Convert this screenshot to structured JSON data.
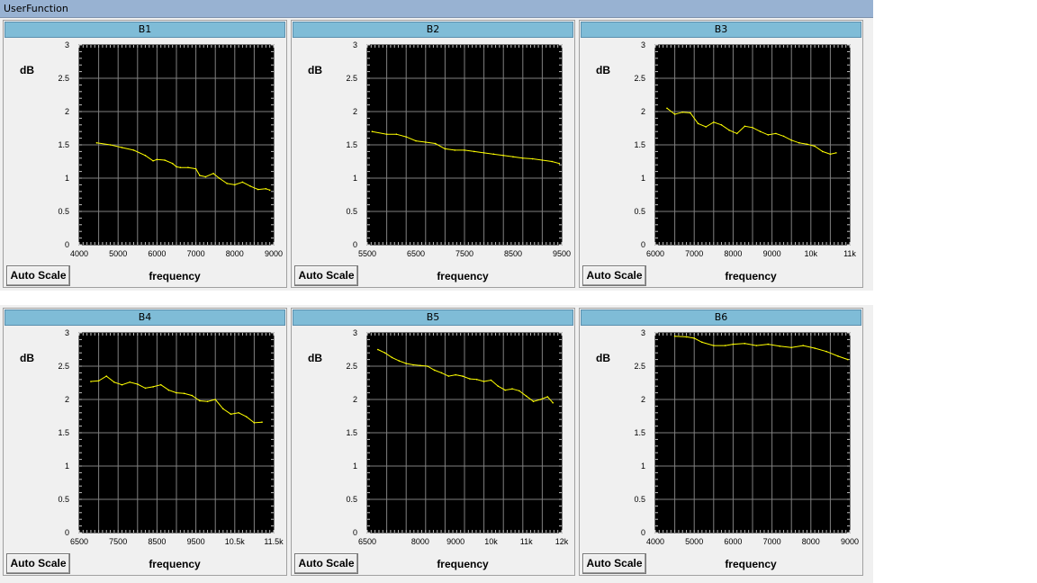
{
  "window": {
    "title": "UserFunction"
  },
  "button_label": "Auto Scale",
  "colors": {
    "plot_bg": "#000000",
    "grid": "#808080",
    "trace": "#ffff00",
    "panel_title_bg": "#7fbcd7",
    "titlebar_bg": "#98b2d2"
  },
  "chart_data": [
    {
      "title": "B1",
      "type": "line",
      "ylabel": "dB",
      "xlabel": "frequency",
      "ylim": [
        0,
        3
      ],
      "xlim": [
        4000,
        9000
      ],
      "yticks": [
        "0",
        "0.5",
        "1",
        "1.5",
        "2",
        "2.5",
        "3"
      ],
      "xticks": [
        {
          "v": 4000,
          "label": "4000"
        },
        {
          "v": 5000,
          "label": "5000"
        },
        {
          "v": 6000,
          "label": "6000"
        },
        {
          "v": 7000,
          "label": "7000"
        },
        {
          "v": 8000,
          "label": "8000"
        },
        {
          "v": 9000,
          "label": "9000"
        }
      ],
      "x": [
        4450,
        4800,
        5100,
        5400,
        5700,
        5900,
        6000,
        6200,
        6400,
        6500,
        6600,
        6800,
        7000,
        7100,
        7250,
        7450,
        7600,
        7800,
        8000,
        8200,
        8400,
        8600,
        8800,
        8900
      ],
      "y": [
        1.53,
        1.5,
        1.46,
        1.42,
        1.34,
        1.26,
        1.28,
        1.27,
        1.22,
        1.17,
        1.16,
        1.16,
        1.14,
        1.04,
        1.02,
        1.07,
        1.0,
        0.92,
        0.9,
        0.94,
        0.88,
        0.83,
        0.84,
        0.82
      ]
    },
    {
      "title": "B2",
      "type": "line",
      "ylabel": "dB",
      "xlabel": "frequency",
      "ylim": [
        0,
        3
      ],
      "xlim": [
        5500,
        9500
      ],
      "yticks": [
        "0",
        "0.5",
        "1",
        "1.5",
        "2",
        "2.5",
        "3"
      ],
      "xticks": [
        {
          "v": 5500,
          "label": "5500"
        },
        {
          "v": 6500,
          "label": "6500"
        },
        {
          "v": 7500,
          "label": "7500"
        },
        {
          "v": 8500,
          "label": "8500"
        },
        {
          "v": 9500,
          "label": "9500"
        }
      ],
      "x": [
        5600,
        5900,
        6100,
        6300,
        6500,
        6700,
        6900,
        7100,
        7300,
        7500,
        7700,
        7900,
        8100,
        8300,
        8500,
        8700,
        8900,
        9100,
        9300,
        9450
      ],
      "y": [
        1.7,
        1.66,
        1.66,
        1.62,
        1.56,
        1.54,
        1.52,
        1.44,
        1.42,
        1.42,
        1.4,
        1.38,
        1.36,
        1.34,
        1.32,
        1.3,
        1.29,
        1.27,
        1.25,
        1.22
      ]
    },
    {
      "title": "B3",
      "type": "line",
      "ylabel": "dB",
      "xlabel": "frequency",
      "ylim": [
        0,
        3
      ],
      "xlim": [
        6000,
        11000
      ],
      "yticks": [
        "0",
        "0.5",
        "1",
        "1.5",
        "2",
        "2.5",
        "3"
      ],
      "xticks": [
        {
          "v": 6000,
          "label": "6000"
        },
        {
          "v": 7000,
          "label": "7000"
        },
        {
          "v": 8000,
          "label": "8000"
        },
        {
          "v": 9000,
          "label": "9000"
        },
        {
          "v": 10000,
          "label": "10k"
        },
        {
          "v": 11000,
          "label": "11k"
        }
      ],
      "x": [
        6300,
        6500,
        6700,
        6900,
        7100,
        7300,
        7500,
        7700,
        7900,
        8100,
        8300,
        8500,
        8700,
        8900,
        9100,
        9300,
        9500,
        9700,
        9900,
        10100,
        10300,
        10500,
        10650
      ],
      "y": [
        2.05,
        1.96,
        1.99,
        1.98,
        1.82,
        1.77,
        1.84,
        1.8,
        1.72,
        1.67,
        1.78,
        1.76,
        1.7,
        1.65,
        1.67,
        1.63,
        1.57,
        1.53,
        1.51,
        1.48,
        1.4,
        1.36,
        1.38
      ]
    },
    {
      "title": "B4",
      "type": "line",
      "ylabel": "dB",
      "xlabel": "frequency",
      "ylim": [
        0,
        3
      ],
      "xlim": [
        6500,
        11500
      ],
      "yticks": [
        "0",
        "0.5",
        "1",
        "1.5",
        "2",
        "2.5",
        "3"
      ],
      "xticks": [
        {
          "v": 6500,
          "label": "6500"
        },
        {
          "v": 7500,
          "label": "7500"
        },
        {
          "v": 8500,
          "label": "8500"
        },
        {
          "v": 9500,
          "label": "9500"
        },
        {
          "v": 10500,
          "label": "10.5k"
        },
        {
          "v": 11500,
          "label": "11.5k"
        }
      ],
      "x": [
        6800,
        7000,
        7200,
        7400,
        7600,
        7800,
        8000,
        8200,
        8400,
        8600,
        8800,
        9000,
        9200,
        9400,
        9600,
        9800,
        10000,
        10200,
        10400,
        10600,
        10800,
        11000,
        11200
      ],
      "y": [
        2.27,
        2.28,
        2.35,
        2.26,
        2.22,
        2.26,
        2.23,
        2.17,
        2.19,
        2.22,
        2.14,
        2.1,
        2.09,
        2.06,
        1.98,
        1.97,
        2.0,
        1.86,
        1.78,
        1.8,
        1.74,
        1.65,
        1.66
      ]
    },
    {
      "title": "B5",
      "type": "line",
      "ylabel": "dB",
      "xlabel": "frequency",
      "ylim": [
        0,
        3
      ],
      "xlim": [
        6500,
        12000
      ],
      "yticks": [
        "0",
        "0.5",
        "1",
        "1.5",
        "2",
        "2.5",
        "3"
      ],
      "xticks": [
        {
          "v": 6500,
          "label": "6500"
        },
        {
          "v": 8000,
          "label": "8000"
        },
        {
          "v": 9000,
          "label": "9000"
        },
        {
          "v": 10000,
          "label": "10k"
        },
        {
          "v": 11000,
          "label": "11k"
        },
        {
          "v": 12000,
          "label": "12k"
        }
      ],
      "x": [
        6800,
        7000,
        7200,
        7400,
        7600,
        7800,
        8000,
        8200,
        8400,
        8600,
        8800,
        9000,
        9200,
        9400,
        9600,
        9800,
        10000,
        10200,
        10400,
        10600,
        10800,
        11000,
        11200,
        11400,
        11600,
        11750
      ],
      "y": [
        2.75,
        2.7,
        2.63,
        2.58,
        2.54,
        2.52,
        2.51,
        2.5,
        2.44,
        2.4,
        2.35,
        2.37,
        2.35,
        2.31,
        2.3,
        2.27,
        2.29,
        2.2,
        2.14,
        2.16,
        2.13,
        2.05,
        1.97,
        2.0,
        2.04,
        1.95
      ]
    },
    {
      "title": "B6",
      "type": "line",
      "ylabel": "dB",
      "xlabel": "frequency",
      "ylim": [
        0,
        3
      ],
      "xlim": [
        4000,
        9000
      ],
      "yticks": [
        "0",
        "0.5",
        "1",
        "1.5",
        "2",
        "2.5",
        "3"
      ],
      "xticks": [
        {
          "v": 4000,
          "label": "4000"
        },
        {
          "v": 5000,
          "label": "5000"
        },
        {
          "v": 6000,
          "label": "6000"
        },
        {
          "v": 7000,
          "label": "7000"
        },
        {
          "v": 8000,
          "label": "8000"
        },
        {
          "v": 9000,
          "label": "9000"
        }
      ],
      "x": [
        4500,
        4800,
        5000,
        5200,
        5500,
        5800,
        6000,
        6300,
        6600,
        6900,
        7200,
        7500,
        7800,
        8100,
        8400,
        8700,
        8950
      ],
      "y": [
        2.95,
        2.94,
        2.92,
        2.86,
        2.81,
        2.81,
        2.83,
        2.84,
        2.81,
        2.83,
        2.8,
        2.78,
        2.81,
        2.77,
        2.72,
        2.65,
        2.6
      ]
    }
  ]
}
